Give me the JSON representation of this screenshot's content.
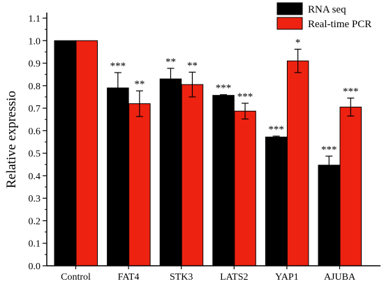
{
  "chart_data": {
    "type": "bar",
    "title": "",
    "xlabel": "",
    "ylabel": "Relative expressio",
    "ylim": [
      0.0,
      1.1
    ],
    "ytick_step": 0.1,
    "grid": false,
    "legend_position": "top-right",
    "categories": [
      "Control",
      "FAT4",
      "STK3",
      "LATS2",
      "YAP1",
      "AJUBA"
    ],
    "series": [
      {
        "name": "RNA seq",
        "color": "#000000",
        "values": [
          1.0,
          0.79,
          0.83,
          0.757,
          0.572,
          0.447
        ],
        "errors": [
          0.0,
          0.068,
          0.047,
          0.003,
          0.004,
          0.04
        ],
        "significance": [
          "",
          "***",
          "**",
          "***",
          "***",
          "***"
        ]
      },
      {
        "name": "Real-time PCR",
        "color": "#ee2211",
        "values": [
          1.0,
          0.72,
          0.805,
          0.687,
          0.91,
          0.705
        ],
        "errors": [
          0.0,
          0.057,
          0.055,
          0.035,
          0.052,
          0.04
        ],
        "significance": [
          "",
          "**",
          "**",
          "***",
          "*",
          "***"
        ]
      }
    ]
  }
}
